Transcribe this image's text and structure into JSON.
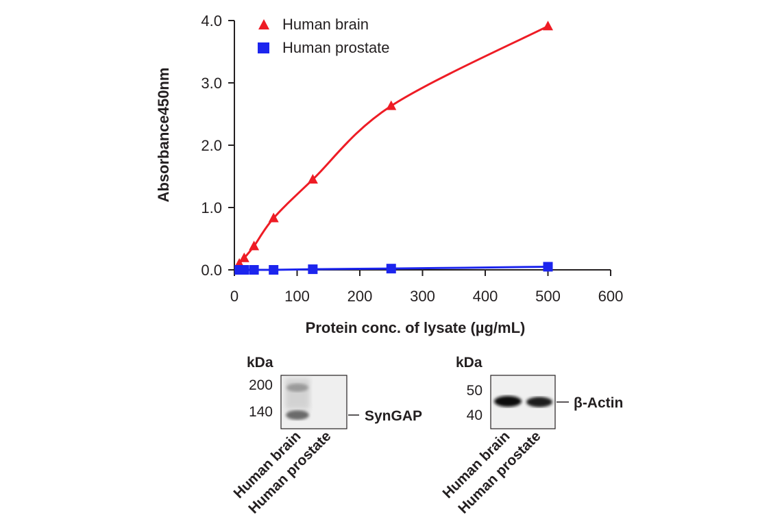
{
  "chart_data": {
    "type": "scatter",
    "xlabel": "Protein conc. of lysate (µg/mL)",
    "ylabel": "Absorbance450nm",
    "xlim": [
      0,
      600
    ],
    "ylim": [
      0,
      4
    ],
    "x_ticks": [
      "0",
      "100",
      "200",
      "300",
      "400",
      "500",
      "600"
    ],
    "y_ticks": [
      "0.0",
      "1.0",
      "2.0",
      "3.0",
      "4.0"
    ],
    "legend_position": "top-left",
    "grid": false,
    "series": [
      {
        "name": "Human brain",
        "marker": "triangle",
        "color": "#ee1c25",
        "x": [
          7.8,
          15.6,
          31.25,
          62.5,
          125,
          250,
          500
        ],
        "y": [
          0.1,
          0.19,
          0.38,
          0.83,
          1.45,
          2.63,
          3.91
        ]
      },
      {
        "name": "Human prostate",
        "marker": "square",
        "color": "#1c25ee",
        "x": [
          7.8,
          15.6,
          31.25,
          62.5,
          125,
          250,
          500
        ],
        "y": [
          0.0,
          0.0,
          0.0,
          0.0,
          0.01,
          0.02,
          0.05
        ]
      }
    ]
  },
  "blots": [
    {
      "unit_label": "kDa",
      "markers": [
        "200",
        "140"
      ],
      "band_label": "SynGAP",
      "lanes": [
        "Human brain",
        "Human prostate"
      ]
    },
    {
      "unit_label": "kDa",
      "markers": [
        "50",
        "40"
      ],
      "band_label": "β-Actin",
      "lanes": [
        "Human brain",
        "Human prostate"
      ]
    }
  ]
}
